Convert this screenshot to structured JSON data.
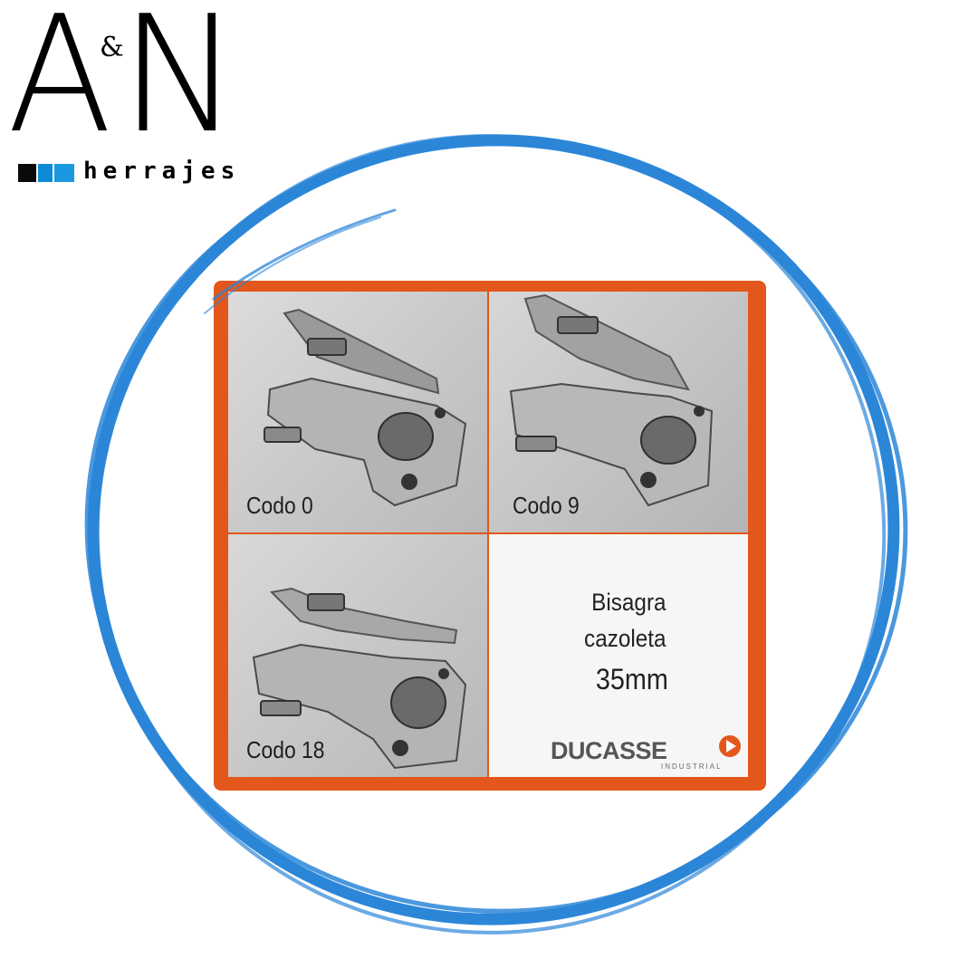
{
  "logo": {
    "letter_a": "A",
    "ampersand": "&",
    "letter_n": "N",
    "wordmark": "herrajes",
    "bar_colors": [
      "#0a0a0a",
      "#0d8bd6",
      "#1a98e0"
    ]
  },
  "accent_colors": {
    "ring": "#2c86d8",
    "card_border": "#e3571c"
  },
  "panels": [
    {
      "label": "Codo 0"
    },
    {
      "label": "Codo 9"
    },
    {
      "label": "Codo 18"
    }
  ],
  "info": {
    "title": "Bisagra",
    "subtitle": "cazoleta",
    "size": "35mm"
  },
  "brand": {
    "name": "DUCASSE",
    "tagline": "INDUSTRIAL",
    "icon": "play-triangle-icon"
  }
}
